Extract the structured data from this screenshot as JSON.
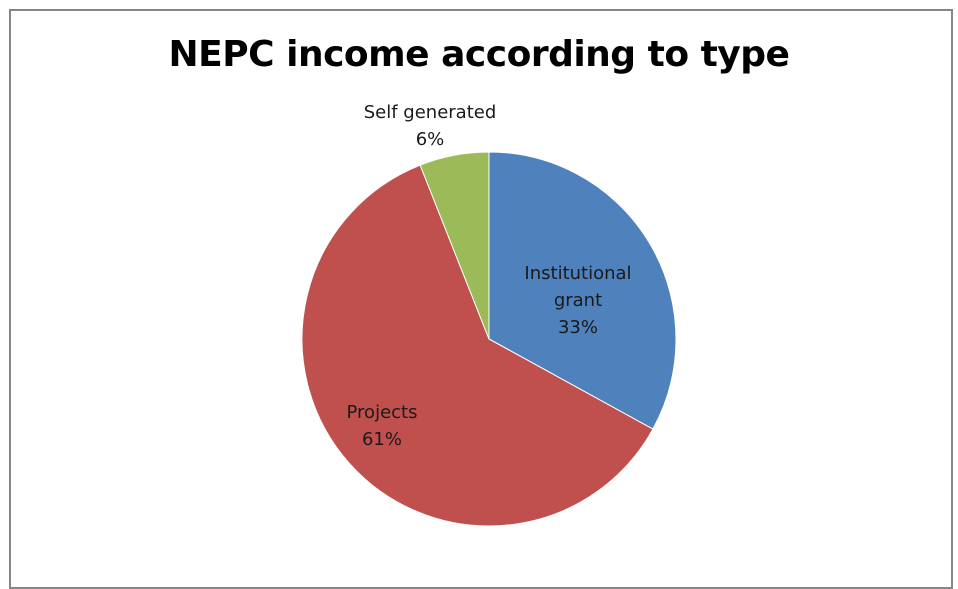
{
  "chart_data": {
    "type": "pie",
    "title": "NEPC income according to type",
    "slices": [
      {
        "label_lines": [
          "Institutional",
          "grant"
        ],
        "percent_label": "33%",
        "value": 33,
        "color": "#4F81BD"
      },
      {
        "label_lines": [
          "Projects"
        ],
        "percent_label": "61%",
        "value": 61,
        "color": "#C0504D"
      },
      {
        "label_lines": [
          "Self generated"
        ],
        "percent_label": "6%",
        "value": 6,
        "color": "#9BBB59"
      }
    ],
    "start_angle_deg": 0,
    "direction": "clockwise",
    "legend": "none"
  }
}
